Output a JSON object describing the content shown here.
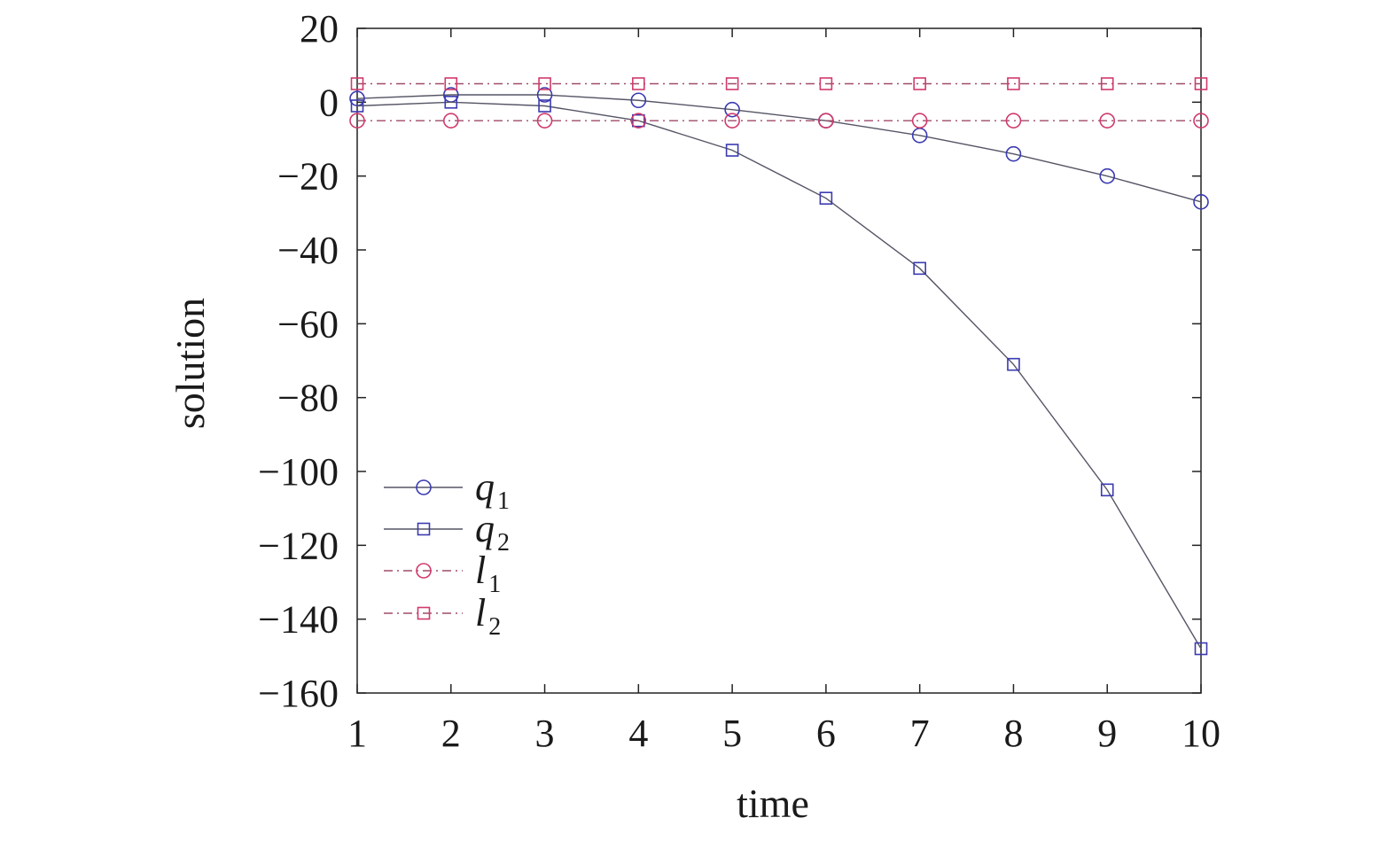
{
  "chart_data": {
    "type": "line",
    "title": "",
    "xlabel": "time",
    "ylabel": "solution",
    "xlim": [
      1,
      10
    ],
    "ylim": [
      -160,
      20
    ],
    "x": [
      1,
      2,
      3,
      4,
      5,
      6,
      7,
      8,
      9,
      10
    ],
    "xticks": [
      "1",
      "2",
      "3",
      "4",
      "5",
      "6",
      "7",
      "8",
      "9",
      "10"
    ],
    "yticks": [
      {
        "value": 20,
        "label": "20"
      },
      {
        "value": 0,
        "label": "0"
      },
      {
        "value": -20,
        "label": "−20"
      },
      {
        "value": -40,
        "label": "−40"
      },
      {
        "value": -60,
        "label": "−60"
      },
      {
        "value": -80,
        "label": "−80"
      },
      {
        "value": -100,
        "label": "−100"
      },
      {
        "value": -120,
        "label": "−120"
      },
      {
        "value": -140,
        "label": "−140"
      },
      {
        "value": -160,
        "label": "−160"
      }
    ],
    "grid": false,
    "legend_position": "bottom-left",
    "series": [
      {
        "name": "q",
        "subscript": "1",
        "marker": "circle",
        "line": "solid",
        "color": "#3a3ab0",
        "line_color": "#555566",
        "values": [
          1,
          2,
          2,
          0.5,
          -2,
          -5,
          -9,
          -14,
          -20,
          -27
        ]
      },
      {
        "name": "q",
        "subscript": "2",
        "marker": "square",
        "line": "solid",
        "color": "#3a3ab0",
        "line_color": "#555566",
        "values": [
          -1,
          0,
          -1,
          -5,
          -13,
          -26,
          -45,
          -71,
          -105,
          -148
        ]
      },
      {
        "name": "l",
        "subscript": "1",
        "marker": "circle",
        "line": "dashdot",
        "color": "#d03a6a",
        "line_color": "#a04a6a",
        "values": [
          -5,
          -5,
          -5,
          -5,
          -5,
          -5,
          -5,
          -5,
          -5,
          -5
        ]
      },
      {
        "name": "l",
        "subscript": "2",
        "marker": "square",
        "line": "dashdot",
        "color": "#d03a6a",
        "line_color": "#a04a6a",
        "values": [
          5,
          5,
          5,
          5,
          5,
          5,
          5,
          5,
          5,
          5
        ]
      }
    ]
  }
}
